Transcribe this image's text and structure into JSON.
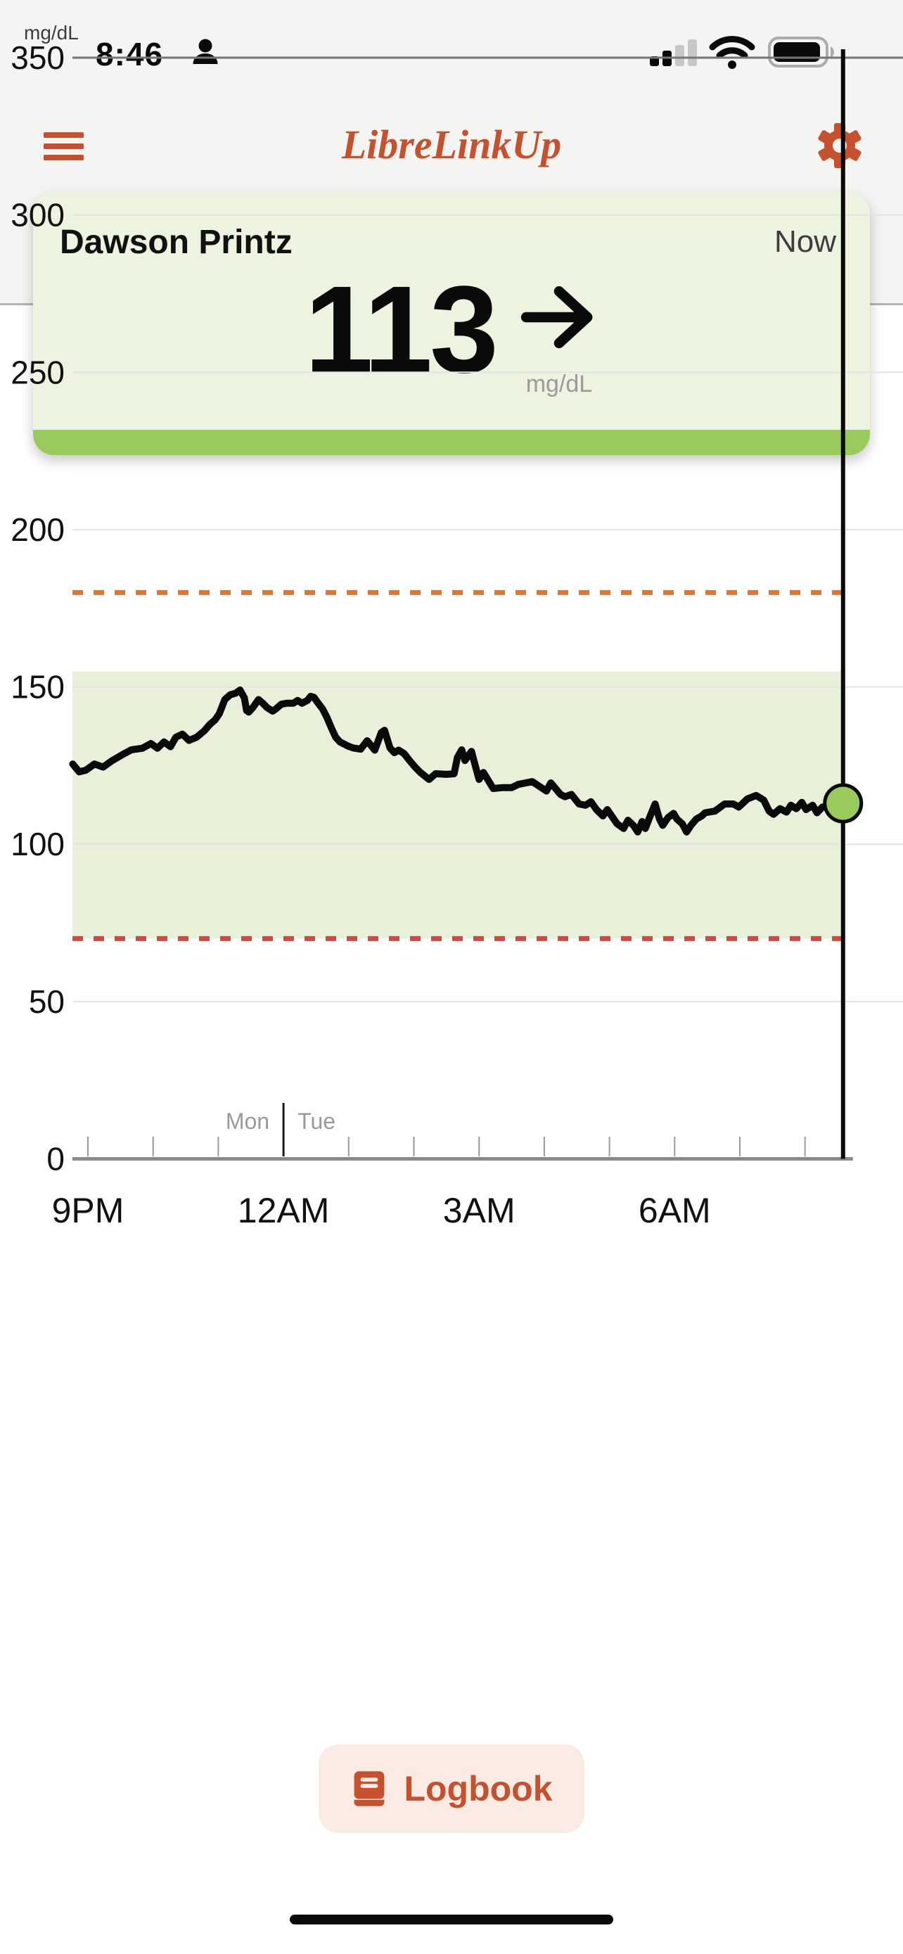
{
  "status_bar": {
    "time": "8:46"
  },
  "header": {
    "title": "LibreLinkUp"
  },
  "patient_card": {
    "name": "Dawson Printz",
    "timestamp_label": "Now",
    "glucose_value": "113",
    "unit": "mg/dL",
    "trend": "steady-right-arrow"
  },
  "logbook": {
    "label": "Logbook"
  },
  "colors": {
    "brand_orange": "#C5512F",
    "card_green_bg": "#ECF3DF",
    "in_range_green": "#9ACA5B",
    "band_green": "#E9F0DA",
    "high_line_orange": "#E0752B",
    "low_line_red": "#D8453C",
    "trace_black": "#0A0A0A",
    "logbook_bg": "#FAEBE4",
    "top_bg_gray": "#F4F4F3"
  },
  "chart_data": {
    "type": "line",
    "ylabel": "mg/dL",
    "ylim": [
      0,
      350
    ],
    "yticks": [
      0,
      50,
      100,
      150,
      200,
      250,
      300,
      350
    ],
    "xticks": [
      {
        "label": "9PM",
        "time": "21:00"
      },
      {
        "label": "12AM",
        "time": "24:00"
      },
      {
        "label": "3AM",
        "time": "03:00"
      },
      {
        "label": "6AM",
        "time": "06:00"
      }
    ],
    "hour_ticks": [
      "21:00",
      "22:00",
      "23:00",
      "24:00",
      "01:00",
      "02:00",
      "03:00",
      "04:00",
      "05:00",
      "06:00",
      "07:00",
      "08:00"
    ],
    "day_boundary": {
      "time": "24:00",
      "left_label": "Mon",
      "right_label": "Tue"
    },
    "target_range": {
      "low": 70,
      "high": 150
    },
    "high_threshold": {
      "value": 180
    },
    "low_threshold": {
      "value": 70
    },
    "now_marker": {
      "time": "08:35",
      "value": 113
    },
    "grid": true,
    "legend": "none",
    "series": [
      {
        "name": "glucose",
        "points": [
          [
            "20:46",
            125.5
          ],
          [
            "20:52",
            123
          ],
          [
            "20:58",
            123.5
          ],
          [
            "21:06",
            125.5
          ],
          [
            "21:14",
            124.5
          ],
          [
            "21:22",
            126.5
          ],
          [
            "21:32",
            128.5
          ],
          [
            "21:40",
            130
          ],
          [
            "21:50",
            130.5
          ],
          [
            "21:58",
            132
          ],
          [
            "22:04",
            130.5
          ],
          [
            "22:10",
            132.5
          ],
          [
            "22:16",
            131
          ],
          [
            "22:21",
            134
          ],
          [
            "22:27",
            135
          ],
          [
            "22:33",
            133
          ],
          [
            "22:40",
            134
          ],
          [
            "22:47",
            136
          ],
          [
            "22:52",
            138
          ],
          [
            "22:57",
            139.5
          ],
          [
            "23:01",
            141.5
          ],
          [
            "23:06",
            146
          ],
          [
            "23:11",
            147.5
          ],
          [
            "23:16",
            148
          ],
          [
            "23:20",
            149
          ],
          [
            "23:24",
            146.5
          ],
          [
            "23:26",
            142.5
          ],
          [
            "23:28",
            142
          ],
          [
            "23:32",
            143.5
          ],
          [
            "23:37",
            146
          ],
          [
            "23:41",
            144.8
          ],
          [
            "23:45",
            143.4
          ],
          [
            "23:50",
            142.3
          ],
          [
            "23:53",
            143
          ],
          [
            "23:58",
            144.5
          ],
          [
            "00:03",
            144.8
          ],
          [
            "00:09",
            144.8
          ],
          [
            "00:13",
            145.7
          ],
          [
            "00:17",
            144.8
          ],
          [
            "00:22",
            145.7
          ],
          [
            "00:25",
            147
          ],
          [
            "00:28",
            146.7
          ],
          [
            "00:32",
            144.8
          ],
          [
            "00:36",
            143
          ],
          [
            "00:40",
            140.3
          ],
          [
            "00:44",
            137
          ],
          [
            "00:48",
            134
          ],
          [
            "00:52",
            132.5
          ],
          [
            "00:56",
            131.8
          ],
          [
            "01:00",
            131.1
          ],
          [
            "01:04",
            130.6
          ],
          [
            "01:11",
            130.2
          ],
          [
            "01:17",
            132.9
          ],
          [
            "01:24",
            129.9
          ],
          [
            "01:30",
            135.5
          ],
          [
            "01:33",
            136.2
          ],
          [
            "01:38",
            130.6
          ],
          [
            "01:42",
            129.1
          ],
          [
            "01:46",
            129.9
          ],
          [
            "01:51",
            128.8
          ],
          [
            "01:56",
            126.6
          ],
          [
            "02:01",
            124.6
          ],
          [
            "02:06",
            122.8
          ],
          [
            "02:10",
            121.7
          ],
          [
            "02:14",
            120.6
          ],
          [
            "02:20",
            122.4
          ],
          [
            "02:30",
            122.2
          ],
          [
            "02:37",
            122.4
          ],
          [
            "02:40",
            127.5
          ],
          [
            "02:44",
            130
          ],
          [
            "02:47",
            126.6
          ],
          [
            "02:53",
            129.5
          ],
          [
            "02:57",
            124.3
          ],
          [
            "03:00",
            120.6
          ],
          [
            "03:04",
            122.8
          ],
          [
            "03:13",
            117.7
          ],
          [
            "03:22",
            118
          ],
          [
            "03:30",
            118
          ],
          [
            "03:36",
            119
          ],
          [
            "03:49",
            119.9
          ],
          [
            "04:02",
            116.9
          ],
          [
            "04:06",
            119.5
          ],
          [
            "04:15",
            115.8
          ],
          [
            "04:19",
            115.1
          ],
          [
            "04:25",
            115.8
          ],
          [
            "04:32",
            112.8
          ],
          [
            "04:38",
            112.4
          ],
          [
            "04:43",
            113.5
          ],
          [
            "04:48",
            111
          ],
          [
            "04:54",
            109
          ],
          [
            "04:58",
            111
          ],
          [
            "05:02",
            109
          ],
          [
            "05:07",
            106.5
          ],
          [
            "05:13",
            105
          ],
          [
            "05:17",
            107.6
          ],
          [
            "05:22",
            106
          ],
          [
            "05:26",
            103.9
          ],
          [
            "05:30",
            107.2
          ],
          [
            "05:33",
            105
          ],
          [
            "05:38",
            109.4
          ],
          [
            "05:42",
            112.8
          ],
          [
            "05:46",
            108
          ],
          [
            "05:49",
            106
          ],
          [
            "05:54",
            108.5
          ],
          [
            "05:59",
            109.8
          ],
          [
            "06:02",
            108
          ],
          [
            "06:07",
            106.5
          ],
          [
            "06:11",
            103.9
          ],
          [
            "06:15",
            106
          ],
          [
            "06:20",
            108
          ],
          [
            "06:25",
            109
          ],
          [
            "06:28",
            110
          ],
          [
            "06:37",
            110.5
          ],
          [
            "06:46",
            112.8
          ],
          [
            "06:54",
            112.8
          ],
          [
            "06:59",
            111.8
          ],
          [
            "07:07",
            114.4
          ],
          [
            "07:15",
            115.5
          ],
          [
            "07:22",
            114
          ],
          [
            "07:27",
            110.5
          ],
          [
            "07:31",
            109.5
          ],
          [
            "07:37",
            111.3
          ],
          [
            "07:43",
            110.2
          ],
          [
            "07:47",
            112.4
          ],
          [
            "07:52",
            111.3
          ],
          [
            "07:57",
            113.3
          ],
          [
            "08:01",
            111
          ],
          [
            "08:07",
            112.4
          ],
          [
            "08:11",
            110
          ],
          [
            "08:16",
            111.8
          ],
          [
            "08:23",
            112.2
          ],
          [
            "08:29",
            112.5
          ],
          [
            "08:35",
            113
          ]
        ]
      }
    ]
  }
}
